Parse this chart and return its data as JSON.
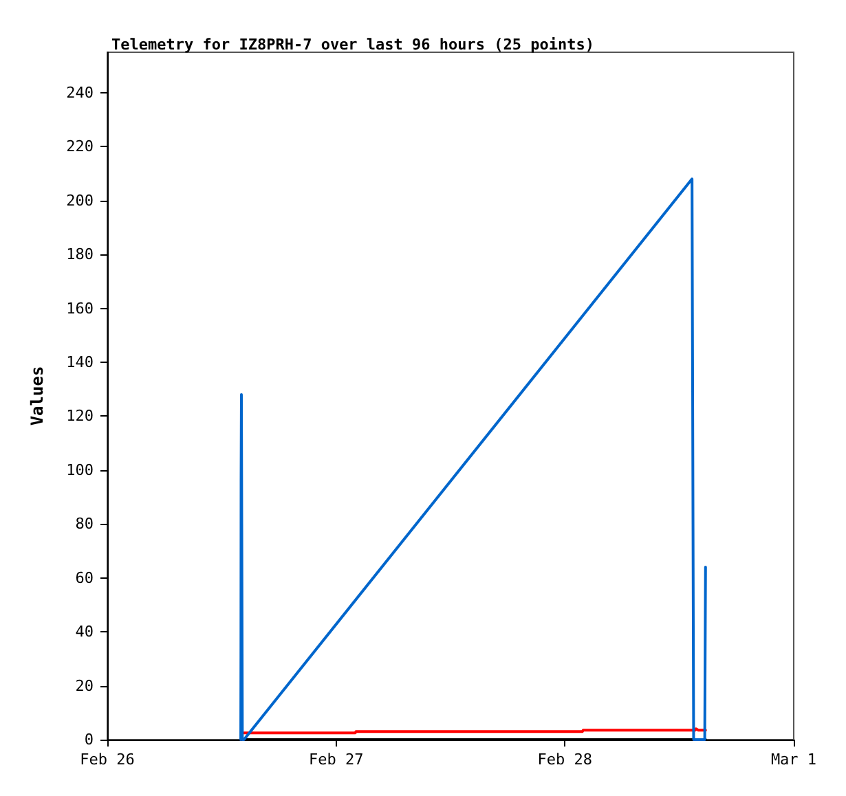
{
  "chart_data": {
    "type": "line",
    "title": "Telemetry for IZ8PRH-7 over last 96 hours (25 points)",
    "ylabel": "Values",
    "xlim": [
      "--02-26",
      "--03-01"
    ],
    "xticks": [
      {
        "value": "--02-26",
        "label": "Feb 26"
      },
      {
        "value": "--02-27",
        "label": "Feb 27"
      },
      {
        "value": "--02-28",
        "label": "Feb 28"
      },
      {
        "value": "--03-01",
        "label": "Mar 1"
      }
    ],
    "ylim": [
      0,
      255
    ],
    "yticks": [
      0,
      20,
      40,
      60,
      80,
      100,
      120,
      140,
      160,
      180,
      200,
      220,
      240
    ],
    "grid": false,
    "marker": "none",
    "line_style": "solid",
    "series": [
      {
        "color": "#0066cc",
        "x": [
          "--02-26T14:00",
          "--02-26T14:01",
          "--02-26T14:02",
          "--02-26T14:04",
          "--02-26T14:10",
          "--02-26T14:20",
          "--02-28T13:20",
          "--02-28T13:25",
          "--02-28T13:30",
          "--02-28T14:40",
          "--02-28T14:45"
        ],
        "values": [
          0,
          32,
          96,
          128,
          0,
          0,
          208,
          104,
          0,
          0,
          64
        ]
      },
      {
        "color": "#ff0000",
        "x": [
          "--02-26T14:20",
          "--02-27T02:00",
          "--02-27T02:05",
          "--02-28T01:50",
          "--02-28T01:55",
          "--02-28T13:40",
          "--02-28T13:45",
          "--02-28T14:00",
          "--02-28T14:45"
        ],
        "values": [
          2.5,
          2.5,
          3,
          3,
          3.5,
          3.5,
          4,
          3.5,
          3.5
        ]
      },
      {
        "color": "#000000",
        "x": [
          "--02-26T14:00",
          "--02-28T14:45"
        ],
        "values": [
          0,
          0
        ]
      }
    ]
  }
}
